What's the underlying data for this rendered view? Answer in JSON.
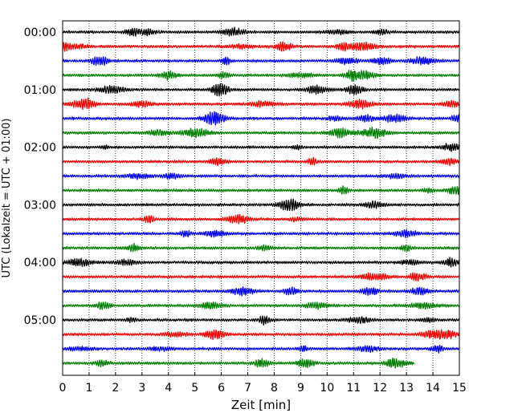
{
  "chart_data": {
    "type": "line",
    "title": "",
    "xlabel": "Zeit  [min]",
    "ylabel": "UTC (Lokalzeit = UTC + 01:00)",
    "xlim": [
      0,
      15
    ],
    "x_ticks": [
      "0",
      "1",
      "2",
      "3",
      "4",
      "5",
      "6",
      "7",
      "8",
      "9",
      "10",
      "11",
      "12",
      "13",
      "14",
      "15"
    ],
    "y_tick_labels": [
      "00:00",
      "01:00",
      "02:00",
      "03:00",
      "04:00",
      "05:00"
    ],
    "rows_per_hour": 4,
    "row_minutes": 15,
    "row_count": 24,
    "last_row_end_min": 13.3,
    "colors": [
      "#000000",
      "#ff0000",
      "#0000ff",
      "#008000"
    ],
    "grid": "vertical dotted at each minute",
    "series": [
      {
        "start": "00:00",
        "color": "#000000"
      },
      {
        "start": "00:15",
        "color": "#ff0000"
      },
      {
        "start": "00:30",
        "color": "#0000ff"
      },
      {
        "start": "00:45",
        "color": "#008000"
      },
      {
        "start": "01:00",
        "color": "#000000"
      },
      {
        "start": "01:15",
        "color": "#ff0000"
      },
      {
        "start": "01:30",
        "color": "#0000ff"
      },
      {
        "start": "01:45",
        "color": "#008000"
      },
      {
        "start": "02:00",
        "color": "#000000"
      },
      {
        "start": "02:15",
        "color": "#ff0000"
      },
      {
        "start": "02:30",
        "color": "#0000ff"
      },
      {
        "start": "02:45",
        "color": "#008000"
      },
      {
        "start": "03:00",
        "color": "#000000"
      },
      {
        "start": "03:15",
        "color": "#ff0000"
      },
      {
        "start": "03:30",
        "color": "#0000ff"
      },
      {
        "start": "03:45",
        "color": "#008000"
      },
      {
        "start": "04:00",
        "color": "#000000"
      },
      {
        "start": "04:15",
        "color": "#ff0000"
      },
      {
        "start": "04:30",
        "color": "#0000ff"
      },
      {
        "start": "04:45",
        "color": "#008000"
      },
      {
        "start": "05:00",
        "color": "#000000"
      },
      {
        "start": "05:15",
        "color": "#ff0000"
      },
      {
        "start": "05:30",
        "color": "#0000ff"
      },
      {
        "start": "05:45",
        "color": "#008000"
      }
    ]
  }
}
